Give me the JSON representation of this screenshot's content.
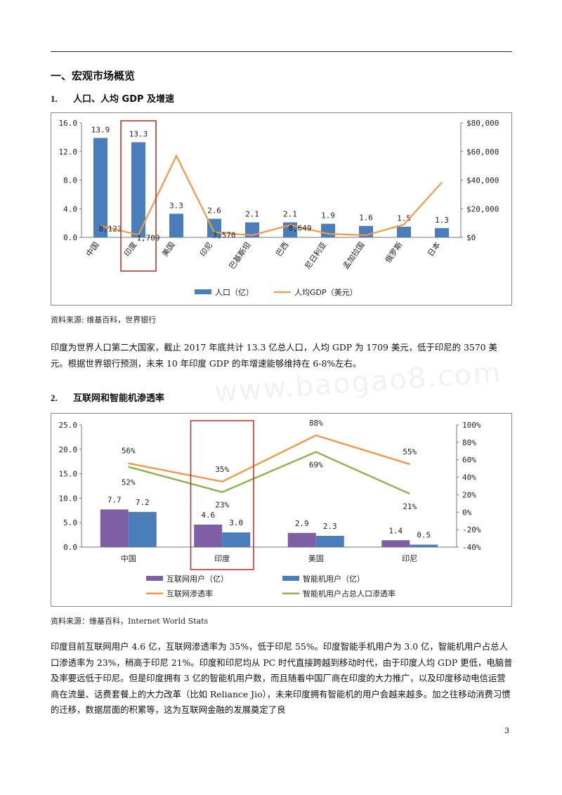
{
  "section_title": "一、宏观市场概览",
  "subsection1": {
    "num": "1.",
    "title": "人口、人均 GDP 及增速"
  },
  "chart1": {
    "type": "bar",
    "categories": [
      "中国",
      "印度",
      "美国",
      "印尼",
      "巴基斯坦",
      "巴西",
      "尼日利亚",
      "孟加拉国",
      "俄罗斯",
      "日本"
    ],
    "series": [
      {
        "name": "人口（亿）",
        "type": "bar",
        "axis": "left",
        "values": [
          13.9,
          13.3,
          3.3,
          2.6,
          2.1,
          2.1,
          1.9,
          1.6,
          1.5,
          1.3
        ],
        "labels": [
          "13.9",
          "13.3",
          "3.3",
          "2.6",
          "2.1",
          "2.1",
          "1.9",
          "1.6",
          "1.5",
          "1.3"
        ]
      },
      {
        "name": "人均GDP（美元）",
        "type": "line",
        "axis": "right",
        "values": [
          8123,
          1709,
          57000,
          3570,
          1500,
          8649,
          2500,
          1500,
          9000,
          38500
        ],
        "labels": [
          "8,123",
          "1,709",
          "",
          "3,570",
          "",
          "8,649",
          "",
          "",
          "",
          ""
        ]
      }
    ],
    "left_axis": {
      "ylim": [
        0,
        16
      ],
      "ticks": [
        "0.0",
        "4.0",
        "8.0",
        "12.0",
        "16.0"
      ]
    },
    "right_axis": {
      "ylim": [
        0,
        80000
      ],
      "ticks": [
        "$0",
        "$20,000",
        "$40,000",
        "$60,000",
        "$80,000"
      ]
    },
    "highlight_category": "印度",
    "legend_position": "bottom",
    "colors": {
      "bar": "#4a7ebb",
      "line": "#f79646",
      "highlight": "#c0392b"
    }
  },
  "source1": "资料来源: 维基百科，世界银行",
  "para1": "印度为世界人口第二大国家，截止 2017 年底共计 13.3 亿总人口，人均 GDP 为 1709 美元，低于印尼的 3570 美元。根据世界银行预测，未来 10 年印度 GDP 的年增速能够维持在 6-8%左右。",
  "subsection2": {
    "num": "2.",
    "title": "互联网和智能机渗透率"
  },
  "chart2": {
    "type": "bar",
    "categories": [
      "中国",
      "印度",
      "美国",
      "印尼"
    ],
    "series": [
      {
        "name": "互联网用户（亿）",
        "type": "bar",
        "axis": "left",
        "values": [
          7.7,
          4.6,
          2.9,
          1.4
        ],
        "labels": [
          "7.7",
          "4.6",
          "2.9",
          "1.4"
        ]
      },
      {
        "name": "智能机用户（亿）",
        "type": "bar",
        "axis": "left",
        "values": [
          7.2,
          3.0,
          2.3,
          0.5
        ],
        "labels": [
          "7.2",
          "3.0",
          "2.3",
          "0.5"
        ]
      },
      {
        "name": "互联网渗透率",
        "type": "line",
        "axis": "right",
        "values": [
          56,
          35,
          88,
          55
        ],
        "labels": [
          "56%",
          "35%",
          "88%",
          "55%"
        ]
      },
      {
        "name": "智能机用户占总人口渗透率",
        "type": "line",
        "axis": "right",
        "values": [
          52,
          23,
          69,
          21
        ],
        "labels": [
          "52%",
          "23%",
          "69%",
          "21%"
        ]
      }
    ],
    "left_axis": {
      "ylim": [
        0,
        25
      ],
      "ticks": [
        "0.0",
        "5.0",
        "10.0",
        "15.0",
        "20.0",
        "25.0"
      ]
    },
    "right_axis": {
      "ylim": [
        -40,
        100
      ],
      "ticks": [
        "-40%",
        "-20%",
        "0%",
        "20%",
        "40%",
        "60%",
        "80%",
        "100%"
      ]
    },
    "highlight_category": "印度",
    "legend_position": "bottom",
    "colors": {
      "bar1": "#7e5ea4",
      "bar2": "#4a7ebb",
      "line1": "#f79646",
      "line2": "#8fb04a",
      "highlight": "#c0392b"
    }
  },
  "source2": "资料来源：维基百科，Internet World Stats",
  "para2": "印度目前互联网用户 4.6 亿，互联网渗透率为 35%，低于印尼 55%。印度智能手机用户为 3.0 亿，智能机用户占总人口渗透率为 23%，稍高于印尼 21%。印度和印尼均从 PC 时代直接跨越到移动时代，由于印度人均 GDP 更低，电脑普及率要远低于印尼。但是印度拥有 3 亿的智能机用户数，而且随着中国厂商在印度的大力推广，以及印度移动电信运营商在流量、话费套餐上的大力改革（比如 Reliance Jio），未来印度拥有智能机的用户会越来越多。加之往移动消费习惯的迁移，数据层面的积累等，这为互联网金融的发展奠定了良",
  "watermark": "www.baogao8.com",
  "page_number": "3"
}
